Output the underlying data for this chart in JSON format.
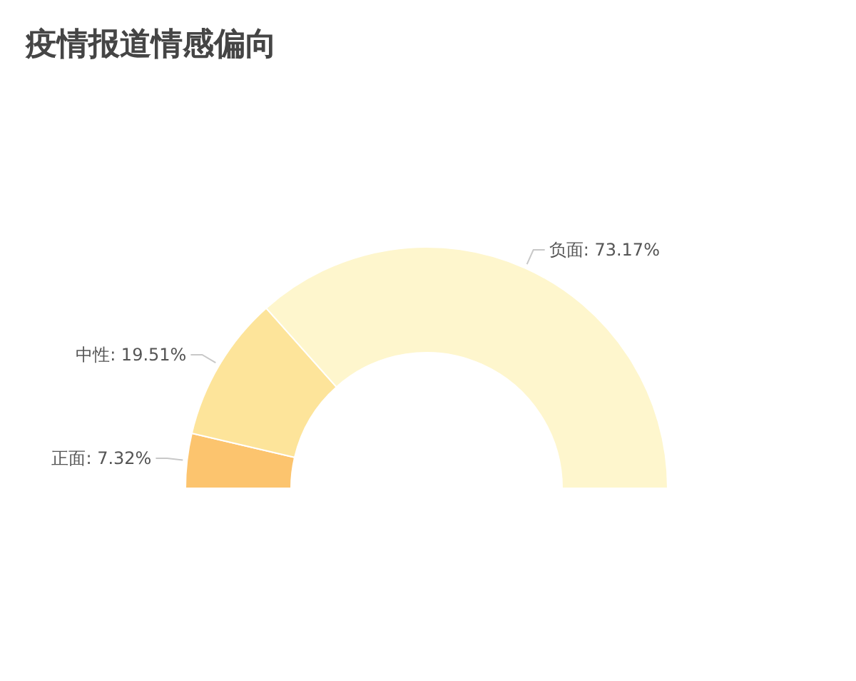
{
  "chart_data": {
    "type": "donut",
    "title": "疫情报道情感偏向",
    "categories": [
      "正面",
      "中性",
      "负面"
    ],
    "values": [
      7.32,
      19.51,
      73.17
    ],
    "value_labels": [
      "7.32%",
      "19.51%",
      "73.17%"
    ],
    "colors": [
      "#fcc46e",
      "#fde49a",
      "#fef6cd"
    ],
    "legend": false
  }
}
